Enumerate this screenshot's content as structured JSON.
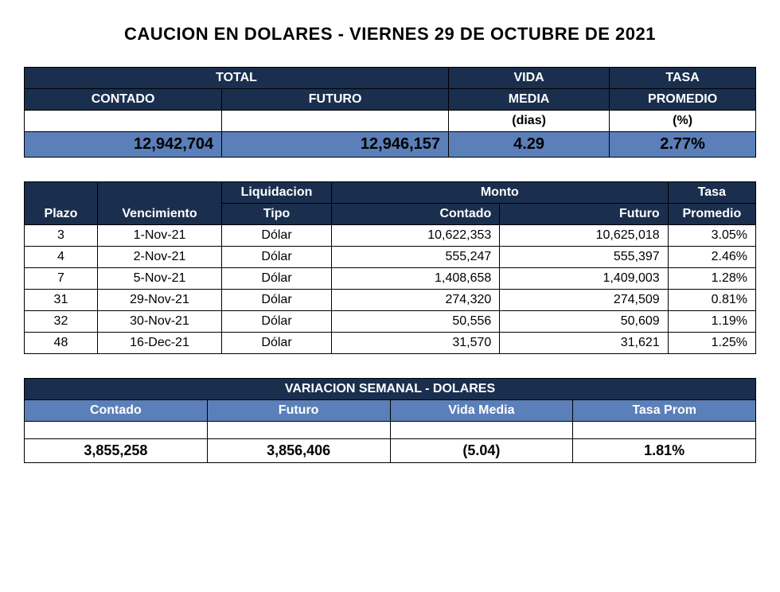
{
  "title": "CAUCION EN DOLARES - VIERNES 29 DE OCTUBRE DE 2021",
  "colors": {
    "navy": "#1a2f4e",
    "blue": "#5b7fb8",
    "white": "#ffffff",
    "black": "#000000"
  },
  "summary": {
    "headers": {
      "total": "TOTAL",
      "vida": "VIDA",
      "tasa": "TASA",
      "contado": "CONTADO",
      "futuro": "FUTURO",
      "media": "MEDIA",
      "promedio": "PROMEDIO",
      "dias": "(dias)",
      "pct": "(%)"
    },
    "values": {
      "contado": "12,942,704",
      "futuro": "12,946,157",
      "vida_media": "4.29",
      "tasa_prom": "2.77%"
    }
  },
  "detail": {
    "headers": {
      "plazo": "Plazo",
      "venc": "Vencimiento",
      "liq": "Liquidacion",
      "tipo": "Tipo",
      "monto": "Monto",
      "contado": "Contado",
      "futuro": "Futuro",
      "tasa": "Tasa",
      "prom": "Promedio"
    },
    "rows": [
      {
        "plazo": "3",
        "venc": "1-Nov-21",
        "tipo": "Dólar",
        "contado": "10,622,353",
        "futuro": "10,625,018",
        "tasa": "3.05%"
      },
      {
        "plazo": "4",
        "venc": "2-Nov-21",
        "tipo": "Dólar",
        "contado": "555,247",
        "futuro": "555,397",
        "tasa": "2.46%"
      },
      {
        "plazo": "7",
        "venc": "5-Nov-21",
        "tipo": "Dólar",
        "contado": "1,408,658",
        "futuro": "1,409,003",
        "tasa": "1.28%"
      },
      {
        "plazo": "31",
        "venc": "29-Nov-21",
        "tipo": "Dólar",
        "contado": "274,320",
        "futuro": "274,509",
        "tasa": "0.81%"
      },
      {
        "plazo": "32",
        "venc": "30-Nov-21",
        "tipo": "Dólar",
        "contado": "50,556",
        "futuro": "50,609",
        "tasa": "1.19%"
      },
      {
        "plazo": "48",
        "venc": "16-Dec-21",
        "tipo": "Dólar",
        "contado": "31,570",
        "futuro": "31,621",
        "tasa": "1.25%"
      }
    ]
  },
  "variation": {
    "title": "VARIACION SEMANAL - DOLARES",
    "headers": {
      "contado": "Contado",
      "futuro": "Futuro",
      "vida": "Vida Media",
      "tasa": "Tasa Prom"
    },
    "values": {
      "contado": "3,855,258",
      "futuro": "3,856,406",
      "vida": "(5.04)",
      "tasa": "1.81%"
    }
  }
}
